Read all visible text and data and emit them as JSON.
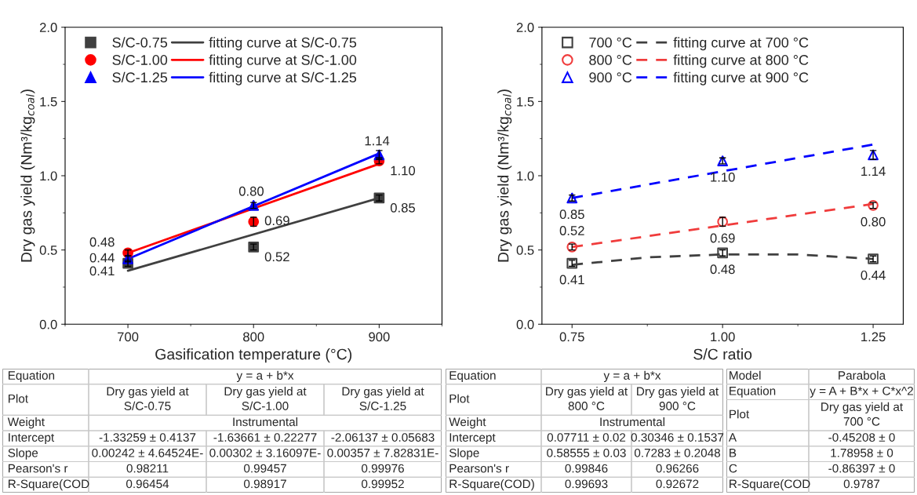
{
  "chart_data": [
    {
      "type": "scatter",
      "xlabel": "Gasification temperature (°C)",
      "ylabel": "Dry gas yield (Nm³/kg$_{coal}$)",
      "x": [
        700,
        800,
        900
      ],
      "xlim": [
        650,
        950
      ],
      "xticks": [
        700,
        800,
        900
      ],
      "ylim": [
        0,
        2
      ],
      "yticks": [
        {
          "value": 0,
          "label": "0.0"
        },
        {
          "value": 0.5,
          "label": "0.5"
        },
        {
          "value": 1,
          "label": "1.0"
        },
        {
          "value": 1.5,
          "label": "1.5"
        },
        {
          "value": 2,
          "label": "2.0"
        }
      ],
      "legend": "top left",
      "grid": false,
      "series": [
        {
          "name": "S/C-0.75",
          "type": "scatter",
          "marker": "square",
          "color": "#404040",
          "values": [
            0.41,
            0.52,
            0.85
          ],
          "errors": [
            0.02,
            0.02,
            0.02
          ],
          "value_labels": [
            "0.41",
            "0.52",
            "0.85"
          ]
        },
        {
          "name": "S/C-1.00",
          "type": "scatter",
          "marker": "circle",
          "color": "#ff0000",
          "values": [
            0.48,
            0.69,
            1.1
          ],
          "errors": [
            0.02,
            0.03,
            0.02
          ],
          "value_labels": [
            "0.48",
            "0.69",
            "1.10"
          ]
        },
        {
          "name": "S/C-1.25",
          "type": "scatter",
          "marker": "triangle",
          "color": "#0000ff",
          "values": [
            0.44,
            0.8,
            1.14
          ],
          "errors": [
            0.02,
            0.02,
            0.03
          ],
          "value_labels": [
            "0.44",
            "0.80",
            "1.14"
          ]
        },
        {
          "name": "fitting curve at S/C-0.75",
          "type": "line",
          "line_style": "solid",
          "color": "#404040",
          "x": [
            700,
            900
          ],
          "values": [
            0.36,
            0.85
          ]
        },
        {
          "name": "fitting curve at S/C-1.00",
          "type": "line",
          "line_style": "solid",
          "color": "#ff0000",
          "x": [
            700,
            900
          ],
          "values": [
            0.48,
            1.08
          ]
        },
        {
          "name": "fitting curve at S/C-1.25",
          "type": "line",
          "line_style": "solid",
          "color": "#0000ff",
          "x": [
            700,
            900
          ],
          "values": [
            0.44,
            1.15
          ]
        }
      ]
    },
    {
      "type": "scatter",
      "xlabel": "S/C ratio",
      "ylabel": "Dry gas yield (Nm³/kg$_{coal}$)",
      "x": [
        0.75,
        1.0,
        1.25
      ],
      "xlim": [
        0.7,
        1.3
      ],
      "xticks": [
        0.75,
        {
          "value": 1.0,
          "label": "1.00"
        },
        1.25
      ],
      "ylim": [
        0,
        2
      ],
      "yticks": [
        {
          "value": 0,
          "label": "0.0"
        },
        {
          "value": 0.5,
          "label": "0.5"
        },
        {
          "value": 1,
          "label": "1.0"
        },
        {
          "value": 1.5,
          "label": "1.5"
        },
        {
          "value": 2,
          "label": "2.0"
        }
      ],
      "legend": "top left",
      "grid": false,
      "series": [
        {
          "name": "700 °C",
          "type": "scatter",
          "marker": "square",
          "color": "#404040",
          "values": [
            0.41,
            0.48,
            0.44
          ],
          "errors": [
            0.02,
            0.02,
            0.02
          ],
          "value_labels": [
            "0.41",
            "0.48",
            "0.44"
          ]
        },
        {
          "name": "800 °C",
          "type": "scatter",
          "marker": "circle",
          "color": "#f03c3c",
          "values": [
            0.52,
            0.69,
            0.8
          ],
          "errors": [
            0.02,
            0.03,
            0.02
          ],
          "value_labels": [
            "0.52",
            "0.69",
            "0.80"
          ]
        },
        {
          "name": "900 °C",
          "type": "scatter",
          "marker": "triangle",
          "color": "#0000ff",
          "values": [
            0.85,
            1.1,
            1.14
          ],
          "errors": [
            0.02,
            0.02,
            0.03
          ],
          "value_labels": [
            "0.85",
            "1.10",
            "1.14"
          ]
        },
        {
          "name": "fitting curve at 700 °C",
          "type": "line",
          "line_style": "dashed",
          "color": "#404040",
          "x": [
            0.75,
            0.875,
            1.0,
            1.125,
            1.25
          ],
          "values": [
            0.4,
            0.45,
            0.47,
            0.47,
            0.44
          ]
        },
        {
          "name": "fitting curve at 800 °C",
          "type": "line",
          "line_style": "dashed",
          "color": "#f03c3c",
          "x": [
            0.75,
            1.25
          ],
          "values": [
            0.52,
            0.81
          ]
        },
        {
          "name": "fitting curve at 900 °C",
          "type": "line",
          "line_style": "dashed",
          "color": "#0000ff",
          "x": [
            0.75,
            1.25
          ],
          "values": [
            0.85,
            1.21
          ]
        }
      ]
    },
    {
      "type": "other",
      "annotations": [
        "Equation",
        "y = a + b*x",
        "Plot",
        "Dry gas yield at S/C-0.75",
        "Dry gas yield at S/C-1.00",
        "Dry gas yield at S/C-1.25",
        "Weight",
        "Instrumental",
        "Intercept",
        "-1.33259 ± 0.4137",
        "-1.63661 ± 0.22277",
        "-2.06137 ± 0.05683",
        "Slope",
        "0.00242 ± 4.64524E-",
        "0.00302 ± 3.16097E-",
        "0.00357 ± 7.82831E-",
        "Pearson's r",
        "0.98211",
        "0.99457",
        "0.99976",
        "R-Square(COD",
        "0.96454",
        "0.98917",
        "0.99952"
      ]
    },
    {
      "type": "other",
      "annotations": [
        "Equation",
        "y = a + b*x",
        "Plot",
        "Dry gas yield at 800 °C",
        "Dry gas yield at 900 °C",
        "Weight",
        "Instrumental",
        "Intercept",
        "0.07711 ± 0.02",
        "0.30346 ± 0.1537",
        "Slope",
        "0.58555 ± 0.03",
        "0.7283 ± 0.2048",
        "Pearson's r",
        "0.99846",
        "0.96266",
        "R-Square(COD)",
        "0.99693",
        "0.92672"
      ]
    },
    {
      "type": "other",
      "annotations": [
        "Model",
        "Parabola",
        "Equation",
        "y = A + B*x + C*x^2",
        "Plot",
        "Dry gas yield at 700 °C",
        "A",
        "-0.45208 ± 0",
        "B",
        "1.78958 ± 0",
        "C",
        "-0.86397 ± 0",
        "R-Square(COD",
        "0.9787"
      ]
    }
  ]
}
